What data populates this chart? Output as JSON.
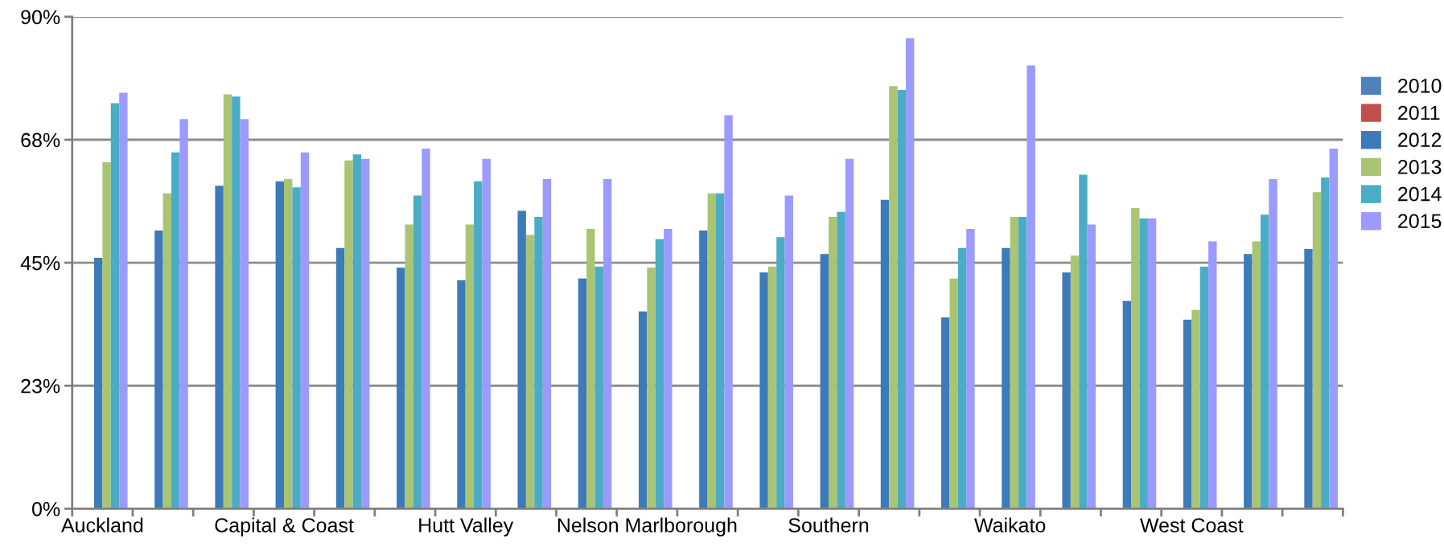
{
  "chart_data": {
    "type": "bar",
    "categories": [
      "Auckland",
      null,
      null,
      "Capital & Coast",
      null,
      null,
      "Hutt Valley",
      null,
      null,
      "Nelson Marlborough",
      null,
      null,
      "Southern",
      null,
      null,
      "Waikato",
      null,
      null,
      "West Coast",
      null,
      null
    ],
    "series": [
      {
        "name": "2010",
        "color": "#4f81bd",
        "values": [
          null,
          null,
          null,
          null,
          null,
          null,
          null,
          null,
          null,
          null,
          null,
          null,
          null,
          null,
          null,
          null,
          null,
          null,
          null,
          null,
          null
        ]
      },
      {
        "name": "2011",
        "color": "#c0504d",
        "values": [
          null,
          null,
          null,
          null,
          null,
          null,
          null,
          null,
          null,
          null,
          null,
          null,
          null,
          null,
          null,
          null,
          null,
          null,
          null,
          null,
          null
        ]
      },
      {
        "name": "2012",
        "color": "#3d7ab8",
        "values": [
          45.9,
          50.9,
          59.1,
          59.9,
          47.7,
          44.1,
          41.8,
          54.5,
          42.1,
          36.1,
          50.9,
          43.2,
          46.6,
          56.5,
          35.0,
          47.7,
          43.2,
          38.0,
          34.6,
          46.6,
          47.5
        ]
      },
      {
        "name": "2013",
        "color": "#a9c574",
        "values": [
          63.4,
          57.7,
          75.8,
          60.3,
          63.7,
          52.0,
          52.0,
          50.1,
          51.2,
          44.1,
          57.7,
          44.3,
          53.4,
          77.3,
          42.1,
          53.4,
          46.3,
          55.0,
          36.4,
          48.9,
          57.9
        ]
      },
      {
        "name": "2014",
        "color": "#4bacc6",
        "values": [
          74.2,
          65.2,
          75.4,
          58.8,
          64.8,
          57.3,
          59.9,
          53.4,
          44.3,
          49.3,
          57.7,
          49.7,
          54.3,
          76.6,
          47.7,
          53.4,
          61.1,
          53.1,
          44.3,
          53.8,
          60.6
        ]
      },
      {
        "name": "2015",
        "color": "#9b9bff",
        "values": [
          76.1,
          71.3,
          71.3,
          65.2,
          64.0,
          65.9,
          64.0,
          60.3,
          60.3,
          51.2,
          72.0,
          57.3,
          64.0,
          86.1,
          51.2,
          81.1,
          52.0,
          53.1,
          48.9,
          60.3,
          65.9
        ]
      }
    ],
    "ylim": [
      0,
      90
    ],
    "yticks": [
      {
        "value": 0,
        "label": "0%"
      },
      {
        "value": 22.5,
        "label": "23%"
      },
      {
        "value": 45,
        "label": "45%"
      },
      {
        "value": 67.5,
        "label": "68%"
      },
      {
        "value": 90,
        "label": "90%"
      }
    ],
    "grid": "y",
    "legend": "right"
  }
}
